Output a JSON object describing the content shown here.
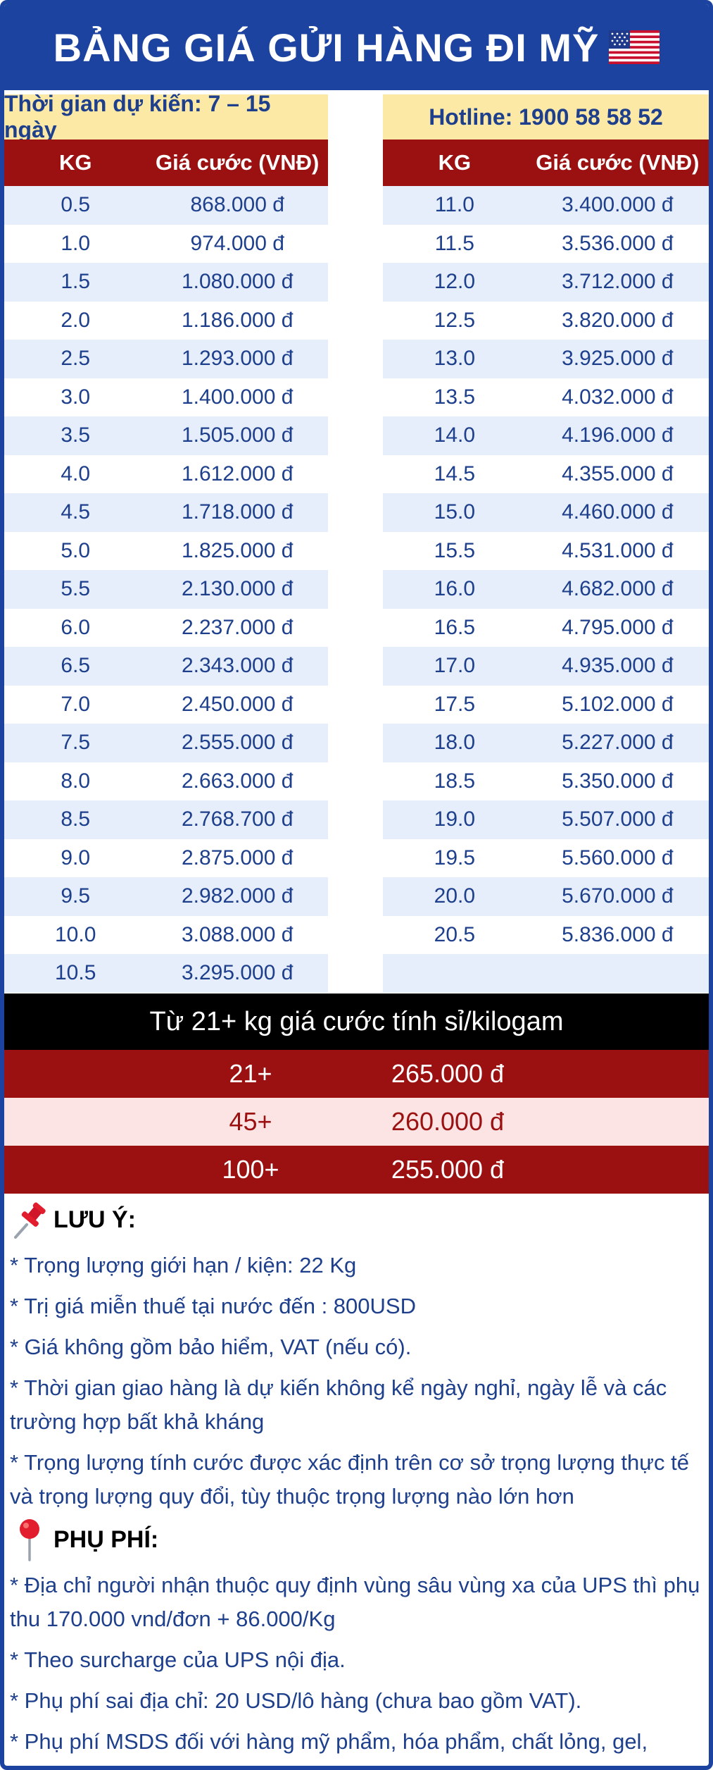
{
  "title": "BẢNG GIÁ GỬI HÀNG ĐI MỸ",
  "info": {
    "eta": "Thời gian dự kiến: 7 – 15 ngày",
    "hotline": "Hotline: 1900 58 58 52"
  },
  "table_headers": {
    "kg": "KG",
    "price": "Giá cước (VNĐ)"
  },
  "left_rows": [
    {
      "kg": "0.5",
      "price": "868.000 đ"
    },
    {
      "kg": "1.0",
      "price": "974.000 đ"
    },
    {
      "kg": "1.5",
      "price": "1.080.000 đ"
    },
    {
      "kg": "2.0",
      "price": "1.186.000 đ"
    },
    {
      "kg": "2.5",
      "price": "1.293.000 đ"
    },
    {
      "kg": "3.0",
      "price": "1.400.000 đ"
    },
    {
      "kg": "3.5",
      "price": "1.505.000 đ"
    },
    {
      "kg": "4.0",
      "price": "1.612.000 đ"
    },
    {
      "kg": "4.5",
      "price": "1.718.000 đ"
    },
    {
      "kg": "5.0",
      "price": "1.825.000 đ"
    },
    {
      "kg": "5.5",
      "price": "2.130.000 đ"
    },
    {
      "kg": "6.0",
      "price": "2.237.000 đ"
    },
    {
      "kg": "6.5",
      "price": "2.343.000 đ"
    },
    {
      "kg": "7.0",
      "price": "2.450.000 đ"
    },
    {
      "kg": "7.5",
      "price": "2.555.000 đ"
    },
    {
      "kg": "8.0",
      "price": "2.663.000 đ"
    },
    {
      "kg": "8.5",
      "price": "2.768.700 đ"
    },
    {
      "kg": "9.0",
      "price": "2.875.000 đ"
    },
    {
      "kg": "9.5",
      "price": "2.982.000 đ"
    },
    {
      "kg": "10.0",
      "price": "3.088.000 đ"
    },
    {
      "kg": "10.5",
      "price": "3.295.000 đ"
    }
  ],
  "right_rows": [
    {
      "kg": "11.0",
      "price": "3.400.000 đ"
    },
    {
      "kg": "11.5",
      "price": "3.536.000 đ"
    },
    {
      "kg": "12.0",
      "price": "3.712.000 đ"
    },
    {
      "kg": "12.5",
      "price": "3.820.000 đ"
    },
    {
      "kg": "13.0",
      "price": "3.925.000 đ"
    },
    {
      "kg": "13.5",
      "price": "4.032.000 đ"
    },
    {
      "kg": "14.0",
      "price": "4.196.000 đ"
    },
    {
      "kg": "14.5",
      "price": "4.355.000 đ"
    },
    {
      "kg": "15.0",
      "price": "4.460.000 đ"
    },
    {
      "kg": "15.5",
      "price": "4.531.000 đ"
    },
    {
      "kg": "16.0",
      "price": "4.682.000 đ"
    },
    {
      "kg": "16.5",
      "price": "4.795.000 đ"
    },
    {
      "kg": "17.0",
      "price": "4.935.000 đ"
    },
    {
      "kg": "17.5",
      "price": "5.102.000 đ"
    },
    {
      "kg": "18.0",
      "price": "5.227.000 đ"
    },
    {
      "kg": "18.5",
      "price": "5.350.000 đ"
    },
    {
      "kg": "19.0",
      "price": "5.507.000 đ"
    },
    {
      "kg": "19.5",
      "price": "5.560.000 đ"
    },
    {
      "kg": "20.0",
      "price": "5.670.000 đ"
    },
    {
      "kg": "20.5",
      "price": "5.836.000 đ"
    },
    {
      "kg": "",
      "price": ""
    }
  ],
  "bulk": {
    "header": "Từ 21+ kg giá cước tính sỉ/kilogam",
    "rows": [
      {
        "kg": "21+",
        "price": "265.000 đ"
      },
      {
        "kg": "45+",
        "price": "260.000 đ"
      },
      {
        "kg": "100+",
        "price": "255.000 đ"
      }
    ]
  },
  "notes": {
    "title": "LƯU Ý:",
    "icon": "pushpin-icon",
    "items": [
      "* Trọng lượng giới hạn / kiện: 22 Kg",
      "* Trị giá miễn thuế tại nước đến : 800USD",
      "* Giá không gồm bảo hiểm, VAT (nếu có).",
      "* Thời gian giao hàng là dự kiến không kể ngày nghỉ, ngày lễ và các trường hợp bất khả kháng",
      "* Trọng lượng tính cước được xác định trên cơ sở trọng lượng thực tế và trọng lượng quy đổi, tùy thuộc trọng lượng nào lớn hơn"
    ]
  },
  "surcharges": {
    "title": "PHỤ PHÍ:",
    "icon": "map-pin-icon",
    "items": [
      "* Địa chỉ người nhận thuộc quy định vùng sâu vùng xa của UPS thì phụ thu 170.000 vnd/đơn + 86.000/Kg",
      "* Theo surcharge của UPS nội địa.",
      "* Phụ phí sai địa chỉ: 20 USD/lô hàng (chưa bao gồm VAT).",
      "* Phụ phí MSDS đối với hàng mỹ phẩm, hóa phẩm, chất lỏng, gel, bột,..."
    ]
  },
  "colors": {
    "primary_blue": "#1d43a0",
    "header_red": "#9b1111",
    "info_yellow": "#fce9a6",
    "row_alt": "#e6eefb",
    "bulk_light": "#fde4e4"
  }
}
